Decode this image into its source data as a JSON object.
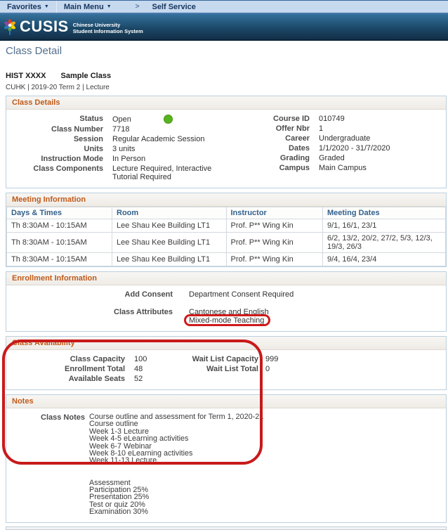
{
  "icons": {
    "dropdown": "▼",
    "chevron": ">"
  },
  "colors": {
    "accent_orange": "#c05a1a",
    "header_blue": "#33618c",
    "status_green": "#58b41e",
    "annotation_red": "#cf1b1b",
    "navbar_bg": "#c7d9ee",
    "banner_top": "#35719c",
    "banner_bottom": "#122f48"
  },
  "nav": {
    "favorites_label": "Favorites",
    "main_menu_label": "Main Menu",
    "breadcrumb_label": "Self Service"
  },
  "banner": {
    "logo_text": "CUSIS",
    "subtitle_line1": "Chinese University",
    "subtitle_line2": "Student Information System"
  },
  "page": {
    "title": "Class Detail",
    "course_code": "HIST XXXX",
    "course_title": "Sample Class",
    "course_meta": "CUHK | 2019-20 Term 2 | Lecture"
  },
  "class_details": {
    "heading": "Class Details",
    "left": [
      {
        "label": "Status",
        "value": "Open",
        "dot": true
      },
      {
        "label": "Class Number",
        "value": "7718"
      },
      {
        "label": "Session",
        "value": "Regular Academic Session"
      },
      {
        "label": "Units",
        "value": "3 units"
      },
      {
        "label": "Instruction Mode",
        "value": "In Person"
      },
      {
        "label": "Class Components",
        "value": "Lecture Required, Interactive\nTutorial Required"
      }
    ],
    "right": [
      {
        "label": "Course ID",
        "value": "010749"
      },
      {
        "label": "Offer Nbr",
        "value": "1"
      },
      {
        "label": "Career",
        "value": "Undergraduate"
      },
      {
        "label": "Dates",
        "value": "1/1/2020 - 31/7/2020"
      },
      {
        "label": "Grading",
        "value": "Graded"
      },
      {
        "label": "Campus",
        "value": "Main Campus"
      }
    ]
  },
  "meeting_information": {
    "heading": "Meeting Information",
    "columns": [
      "Days & Times",
      "Room",
      "Instructor",
      "Meeting Dates"
    ],
    "rows": [
      [
        "Th 8:30AM - 10:15AM",
        "Lee Shau Kee Building LT1",
        "Prof. P** Wing Kin",
        "9/1, 16/1, 23/1"
      ],
      [
        "Th 8:30AM - 10:15AM",
        "Lee Shau Kee Building LT1",
        "Prof. P** Wing Kin",
        "6/2, 13/2, 20/2, 27/2, 5/3, 12/3,\n19/3, 26/3"
      ],
      [
        "Th 8:30AM - 10:15AM",
        "Lee Shau Kee Building LT1",
        "Prof. P** Wing Kin",
        "9/4, 16/4, 23/4"
      ]
    ]
  },
  "enrollment_information": {
    "heading": "Enrollment Information",
    "add_consent_label": "Add Consent",
    "add_consent_value": "Department Consent Required",
    "class_attributes_label": "Class Attributes",
    "class_attributes": [
      "Cantonese and English",
      "Mixed-mode Teaching"
    ]
  },
  "class_availability": {
    "heading": "Class Availability",
    "left": [
      {
        "label": "Class Capacity",
        "value": "100"
      },
      {
        "label": "Enrollment Total",
        "value": "48"
      },
      {
        "label": "Available Seats",
        "value": "52"
      }
    ],
    "right": [
      {
        "label": "Wait List Capacity",
        "value": "999"
      },
      {
        "label": "Wait List Total",
        "value": "0"
      }
    ]
  },
  "notes": {
    "heading": "Notes",
    "label": "Class Notes",
    "lines": [
      "Course outline and assessment for Term 1, 2020-21",
      "Course outline",
      "Week 1-3 Lecture",
      "Week 4-5 eLearning activities",
      "Week 6-7 Webinar",
      "Week 8-10 eLearning activities",
      "Week 11-13 Lecture",
      "",
      "",
      "Assessment",
      "Participation 25%",
      "Presentation 25%",
      "Test or quiz 20%",
      "Examination 30%"
    ]
  }
}
